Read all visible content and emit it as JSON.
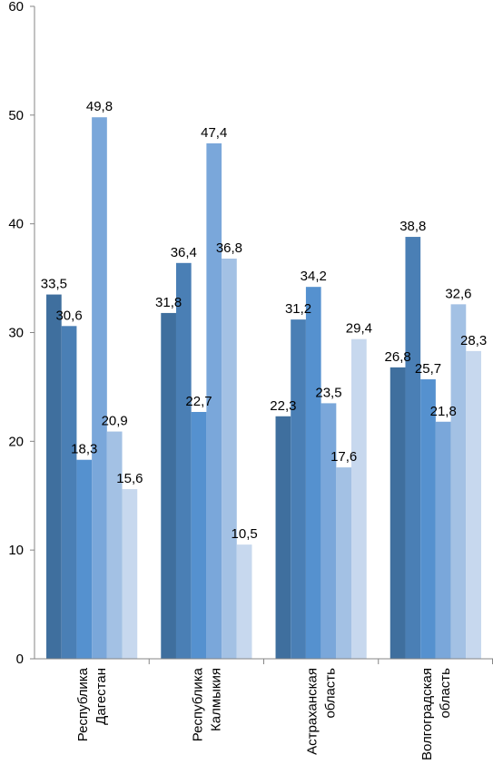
{
  "chart_data": {
    "type": "bar",
    "categories": [
      [
        "Республика",
        "Дагестан"
      ],
      [
        "Республика",
        "Калмыкия"
      ],
      [
        "Астраханская",
        "область"
      ],
      [
        "Волгоградская",
        "область"
      ]
    ],
    "series": [
      {
        "values": [
          33.5,
          31.8,
          22.3,
          26.8
        ],
        "labels": [
          "33,5",
          "31,8",
          "22,3",
          "26,8"
        ],
        "color": "#3f6f9e"
      },
      {
        "values": [
          30.6,
          36.4,
          31.2,
          38.8
        ],
        "labels": [
          "30,6",
          "36,4",
          "31,2",
          "38,8"
        ],
        "color": "#4a7fb5"
      },
      {
        "values": [
          18.3,
          22.7,
          34.2,
          25.7
        ],
        "labels": [
          "18,3",
          "22,7",
          "34,2",
          "25,7"
        ],
        "color": "#5591cf"
      },
      {
        "values": [
          49.8,
          47.4,
          23.5,
          21.8
        ],
        "labels": [
          "49,8",
          "47,4",
          "23,5",
          "21,8"
        ],
        "color": "#7aa7da"
      },
      {
        "values": [
          20.9,
          36.8,
          17.6,
          32.6
        ],
        "labels": [
          "20,9",
          "36,8",
          "17,6",
          "32,6"
        ],
        "color": "#a3c1e4"
      },
      {
        "values": [
          15.6,
          10.5,
          29.4,
          28.3
        ],
        "labels": [
          "15,6",
          "10,5",
          "29,4",
          "28,3"
        ],
        "color": "#c7d8ee"
      }
    ],
    "yticks": [
      "0",
      "10",
      "20",
      "30",
      "40",
      "50",
      "60"
    ],
    "ylim": [
      0,
      60
    ],
    "grid": false,
    "legend": "none"
  }
}
